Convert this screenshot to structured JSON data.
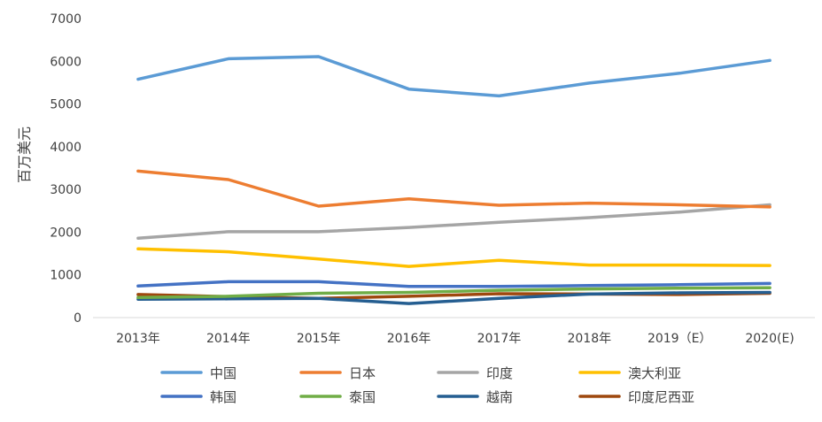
{
  "chart_data": {
    "type": "line",
    "ylabel": "百万美元",
    "ylim": [
      0,
      7000
    ],
    "yticks": [
      "0",
      "1000",
      "2000",
      "3000",
      "4000",
      "5000",
      "6000",
      "7000"
    ],
    "categories": [
      "2013年",
      "2014年",
      "2015年",
      "2016年",
      "2017年",
      "2018年",
      "2019（E）",
      "2020(E)"
    ],
    "grid": false,
    "legend_position": "bottom",
    "series": [
      {
        "name": "中国",
        "color": "#5B9BD5",
        "values": [
          5580,
          6060,
          6110,
          5350,
          5190,
          5490,
          5720,
          6020
        ]
      },
      {
        "name": "日本",
        "color": "#ED7D31",
        "values": [
          3430,
          3230,
          2610,
          2780,
          2630,
          2680,
          2640,
          2590
        ]
      },
      {
        "name": "印度",
        "color": "#A5A5A5",
        "values": [
          1860,
          2010,
          2010,
          2110,
          2230,
          2340,
          2470,
          2640
        ]
      },
      {
        "name": "澳大利亚",
        "color": "#FFC000",
        "values": [
          1610,
          1540,
          1370,
          1200,
          1340,
          1230,
          1230,
          1220
        ]
      },
      {
        "name": "韩国",
        "color": "#4472C4",
        "values": [
          740,
          840,
          840,
          730,
          730,
          750,
          770,
          800
        ]
      },
      {
        "name": "泰国",
        "color": "#70AD47",
        "values": [
          470,
          500,
          570,
          590,
          640,
          670,
          690,
          700
        ]
      },
      {
        "name": "越南",
        "color": "#255E91",
        "values": [
          430,
          440,
          450,
          330,
          450,
          550,
          580,
          590
        ]
      },
      {
        "name": "印度尼西亚",
        "color": "#9E480E",
        "values": [
          540,
          490,
          450,
          500,
          560,
          550,
          540,
          570
        ]
      }
    ]
  }
}
